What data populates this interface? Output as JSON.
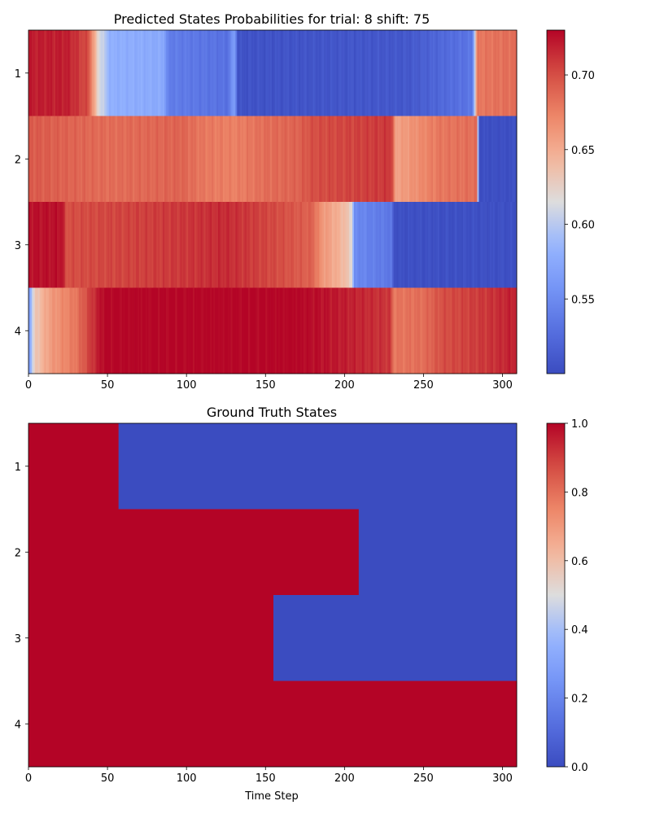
{
  "chart_data": [
    {
      "type": "heatmap",
      "title": "Predicted States Probabilities for trial: 8 shift: 75",
      "xlabel": "",
      "ylabel": "",
      "rows": [
        "1",
        "2",
        "3",
        "4"
      ],
      "xlim": [
        0,
        309
      ],
      "x_ticks": [
        0,
        50,
        100,
        150,
        200,
        250,
        300
      ],
      "colormap": "coolwarm",
      "color_range": [
        0.5,
        0.73
      ],
      "colorbar_ticks": [
        "0.55",
        "0.60",
        "0.65",
        "0.70"
      ],
      "colorbar_tick_values": [
        0.55,
        0.6,
        0.65,
        0.7
      ],
      "segments": [
        [
          [
            0,
            0.72
          ],
          [
            24,
            0.72
          ],
          [
            38,
            0.7
          ],
          [
            44,
            0.62
          ],
          [
            52,
            0.58
          ],
          [
            86,
            0.575
          ],
          [
            88,
            0.54
          ],
          [
            126,
            0.53
          ],
          [
            131,
            0.57
          ],
          [
            132,
            0.505
          ],
          [
            240,
            0.51
          ],
          [
            281,
            0.535
          ],
          [
            284,
            0.68
          ],
          [
            309,
            0.685
          ]
        ],
        [
          [
            0,
            0.695
          ],
          [
            52,
            0.685
          ],
          [
            96,
            0.69
          ],
          [
            110,
            0.68
          ],
          [
            130,
            0.675
          ],
          [
            150,
            0.685
          ],
          [
            170,
            0.69
          ],
          [
            180,
            0.7
          ],
          [
            230,
            0.71
          ],
          [
            232,
            0.655
          ],
          [
            260,
            0.68
          ],
          [
            284,
            0.685
          ],
          [
            285,
            0.502
          ],
          [
            309,
            0.502
          ]
        ],
        [
          [
            0,
            0.725
          ],
          [
            22,
            0.725
          ],
          [
            23,
            0.7
          ],
          [
            100,
            0.71
          ],
          [
            125,
            0.715
          ],
          [
            160,
            0.7
          ],
          [
            180,
            0.69
          ],
          [
            185,
            0.665
          ],
          [
            200,
            0.64
          ],
          [
            205,
            0.62
          ],
          [
            206,
            0.55
          ],
          [
            220,
            0.54
          ],
          [
            230,
            0.535
          ],
          [
            231,
            0.503
          ],
          [
            309,
            0.503
          ]
        ],
        [
          [
            0,
            0.56
          ],
          [
            4,
            0.63
          ],
          [
            14,
            0.66
          ],
          [
            30,
            0.68
          ],
          [
            40,
            0.71
          ],
          [
            48,
            0.73
          ],
          [
            170,
            0.73
          ],
          [
            200,
            0.72
          ],
          [
            229,
            0.71
          ],
          [
            231,
            0.68
          ],
          [
            250,
            0.685
          ],
          [
            262,
            0.7
          ],
          [
            290,
            0.71
          ],
          [
            309,
            0.72
          ]
        ]
      ]
    },
    {
      "type": "heatmap",
      "title": "Ground Truth States",
      "xlabel": "Time Step",
      "ylabel": "",
      "rows": [
        "1",
        "2",
        "3",
        "4"
      ],
      "xlim": [
        0,
        309
      ],
      "x_ticks": [
        0,
        50,
        100,
        150,
        200,
        250,
        300
      ],
      "colormap": "coolwarm",
      "color_range": [
        0.0,
        1.0
      ],
      "colorbar_ticks": [
        "0.0",
        "0.2",
        "0.4",
        "0.6",
        "0.8",
        "1.0"
      ],
      "colorbar_tick_values": [
        0.0,
        0.2,
        0.4,
        0.6,
        0.8,
        1.0
      ],
      "active_until": [
        57,
        209,
        155,
        309
      ]
    }
  ]
}
